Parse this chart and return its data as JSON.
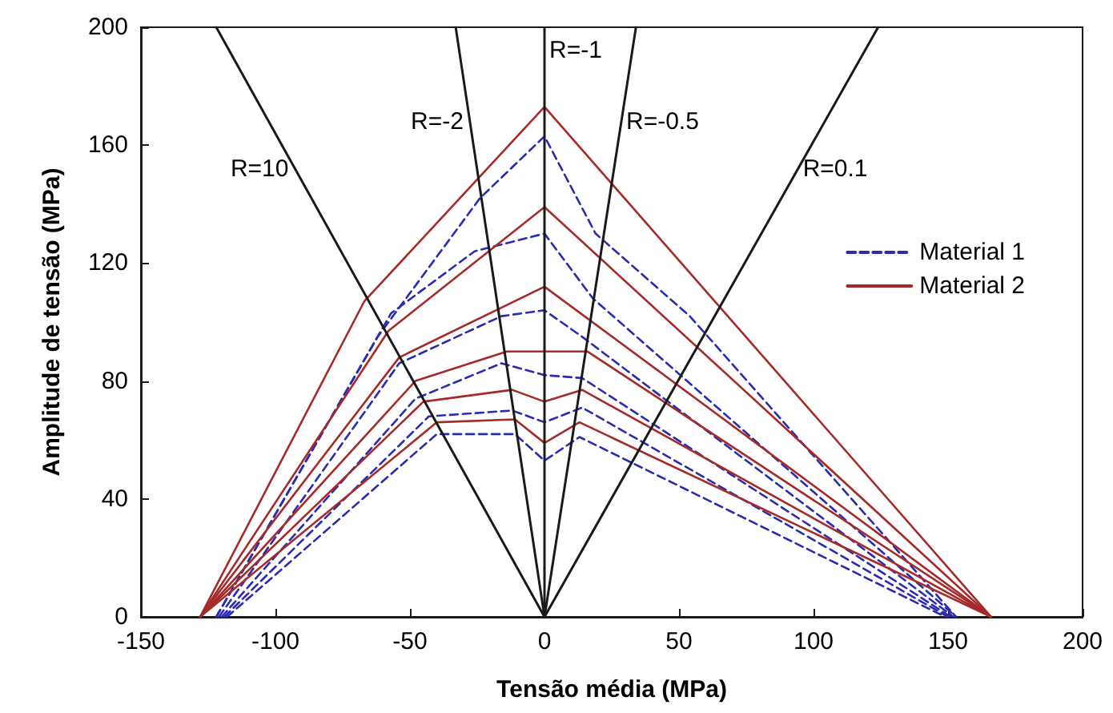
{
  "chart_data": {
    "type": "line",
    "xlabel": "Tensão média (MPa)",
    "ylabel": "Amplitude de tensão (MPa)",
    "xlim": [
      -150,
      200
    ],
    "xticks": [
      -150,
      -100,
      -50,
      0,
      50,
      100,
      150,
      200
    ],
    "ylim": [
      0,
      200
    ],
    "yticks": [
      0,
      40,
      80,
      120,
      160,
      200
    ],
    "legend": "top right",
    "ref_lines": [
      {
        "axis": "x",
        "value": 0,
        "color": "#1a1a1a"
      }
    ],
    "annotations": [
      {
        "text": "R=-1",
        "x": 0,
        "y": 192
      }
    ],
    "marker": "none",
    "series": [
      {
        "name": "R=10",
        "color": "#1a1a1a",
        "line_style": "solid",
        "x": [
          0,
          -122
        ],
        "values": [
          0,
          200
        ]
      },
      {
        "name": "R=-2",
        "color": "#1a1a1a",
        "line_style": "solid",
        "x": [
          0,
          -33
        ],
        "values": [
          0,
          200
        ]
      },
      {
        "name": "R=-0.5",
        "color": "#1a1a1a",
        "line_style": "solid",
        "x": [
          0,
          34
        ],
        "values": [
          0,
          200
        ]
      },
      {
        "name": "R=0.1",
        "color": "#1a1a1a",
        "line_style": "solid",
        "x": [
          0,
          124
        ],
        "values": [
          0,
          200
        ]
      },
      {
        "name": "Material 1",
        "color": "#2b2bb0",
        "line_style": "dashed",
        "x": [
          -122,
          -62,
          -24,
          0,
          19,
          54,
          153
        ],
        "values": [
          0,
          95,
          142,
          163,
          130,
          102,
          0
        ]
      },
      {
        "color": "#2b2bb0",
        "line_style": "dashed",
        "x": [
          -122,
          -57,
          -26,
          0,
          18,
          153
        ],
        "values": [
          0,
          103,
          124,
          130,
          108,
          0
        ]
      },
      {
        "color": "#2b2bb0",
        "line_style": "dashed",
        "x": [
          -121,
          -54,
          -16,
          0,
          14,
          152
        ],
        "values": [
          0,
          86,
          102,
          104,
          95,
          0
        ]
      },
      {
        "color": "#2b2bb0",
        "line_style": "dashed",
        "x": [
          -120,
          -48,
          -16,
          0,
          14,
          151
        ],
        "values": [
          0,
          74,
          86,
          82,
          81,
          0
        ]
      },
      {
        "color": "#2b2bb0",
        "line_style": "dashed",
        "x": [
          -119,
          -43,
          -12,
          0,
          14,
          150
        ],
        "values": [
          0,
          68,
          70,
          66,
          71,
          0
        ]
      },
      {
        "color": "#2b2bb0",
        "line_style": "dashed",
        "x": [
          -118,
          -40,
          -11,
          0,
          13,
          149
        ],
        "values": [
          0,
          62,
          62,
          53,
          61,
          0
        ]
      },
      {
        "name": "Material 2",
        "color": "#a52a2a",
        "line_style": "solid",
        "x": [
          -128,
          -67,
          0,
          166
        ],
        "values": [
          0,
          107,
          173,
          0
        ]
      },
      {
        "color": "#a52a2a",
        "line_style": "solid",
        "x": [
          -128,
          -58,
          0,
          166
        ],
        "values": [
          0,
          97,
          139,
          0
        ]
      },
      {
        "color": "#a52a2a",
        "line_style": "solid",
        "x": [
          -128,
          -54,
          0,
          166
        ],
        "values": [
          0,
          88,
          112,
          0
        ]
      },
      {
        "color": "#a52a2a",
        "line_style": "solid",
        "x": [
          -128,
          -48,
          -14,
          16,
          166
        ],
        "values": [
          0,
          80,
          90,
          90,
          0
        ]
      },
      {
        "color": "#a52a2a",
        "line_style": "solid",
        "x": [
          -128,
          -45,
          -12,
          0,
          14,
          166
        ],
        "values": [
          0,
          73,
          77,
          73,
          77,
          0
        ]
      },
      {
        "color": "#a52a2a",
        "line_style": "solid",
        "x": [
          -128,
          -40,
          -11,
          0,
          13,
          166
        ],
        "values": [
          0,
          66,
          67,
          59,
          66,
          0
        ]
      }
    ]
  }
}
